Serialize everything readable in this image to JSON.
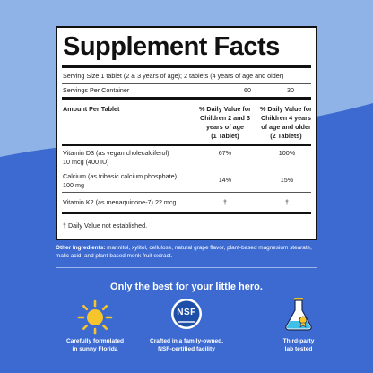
{
  "panel": {
    "title": "Supplement Facts",
    "serving_size": "Serving Size 1 tablet (2 & 3 years of age); 2 tablets (4 years of age and older)",
    "servings_label": "Servings Per Container",
    "servings_col1": "60",
    "servings_col2": "30",
    "header_amount": "Amount Per Tablet",
    "header_col1": [
      "% Daily Value for",
      "Children 2 and 3",
      "years of age",
      "(1 Tablet)"
    ],
    "header_col2": [
      "% Daily Value for",
      "Children 4 years",
      "of age and older",
      "(2 Tablets)"
    ],
    "rows": [
      {
        "name": [
          "Vitamin D3 (as vegan cholecalciferol)",
          "10 mcg (400 IU)"
        ],
        "col1": "67%",
        "col2": "100%"
      },
      {
        "name": [
          "Calcium (as tribasic calcium phosphate)",
          "100 mg"
        ],
        "col1": "14%",
        "col2": "15%"
      },
      {
        "name": [
          "Vitamin K2 (as menaquinone-7) 22 mcg"
        ],
        "col1": "†",
        "col2": "†"
      }
    ],
    "footnote": "† Daily Value not established."
  },
  "ingredients": {
    "label": "Other Ingredients:",
    "text": " mannitol, xylitol, cellulose, natural grape flavor, plant-based magnesium stearate, malic acid, and plant-based monk fruit extract."
  },
  "tagline": "Only the best for your little hero.",
  "features": [
    {
      "icon": "sun-icon",
      "lines": [
        "Carefully formulated",
        "in sunny Florida"
      ]
    },
    {
      "icon": "nsf-badge-icon",
      "badge_text": "NSF",
      "lines": [
        "Crafted in a family-owned,",
        "NSF-certified facility"
      ]
    },
    {
      "icon": "flask-icon",
      "lines": [
        "Third-party",
        "lab tested"
      ]
    }
  ],
  "colors": {
    "top_background": "#8fb3e6",
    "bottom_background": "#3c6ad1",
    "nsf_blue": "#1e4fa8",
    "accent_yellow": "#f5c52b"
  }
}
